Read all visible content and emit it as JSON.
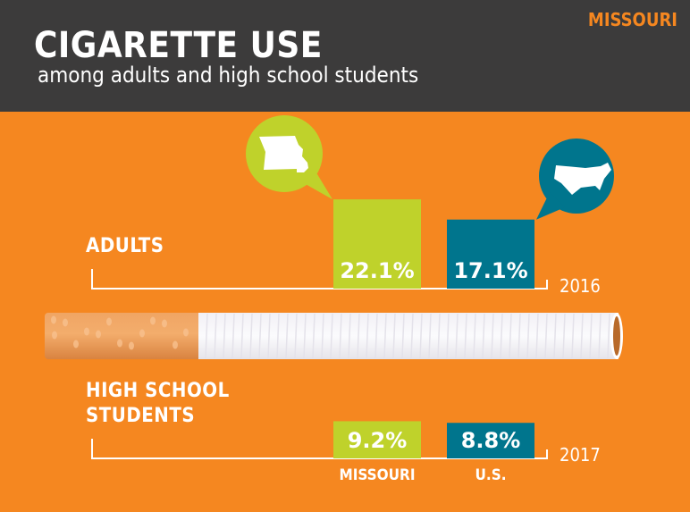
{
  "header": {
    "title": "CIGARETTE USE",
    "subtitle": "among adults and high school students",
    "state": "MISSOURI"
  },
  "colors": {
    "background": "#f58720",
    "header": "#3c3b3b",
    "missouri": "#bfd22b",
    "us": "#00758d"
  },
  "icons": {
    "missouri": "missouri-map-icon",
    "us": "us-map-icon",
    "divider": "cigarette-illustration"
  },
  "chart_data": {
    "type": "bar",
    "categories": [
      "MISSOURI",
      "U.S."
    ],
    "groups": [
      {
        "label": "ADULTS",
        "year": "2016",
        "values": [
          22.1,
          17.1
        ],
        "value_labels": [
          "22.1%",
          "17.1%"
        ]
      },
      {
        "label": "HIGH SCHOOL STUDENTS",
        "year": "2017",
        "values": [
          9.2,
          8.8
        ],
        "value_labels": [
          "9.2%",
          "8.8%"
        ]
      }
    ],
    "unit": "%"
  }
}
